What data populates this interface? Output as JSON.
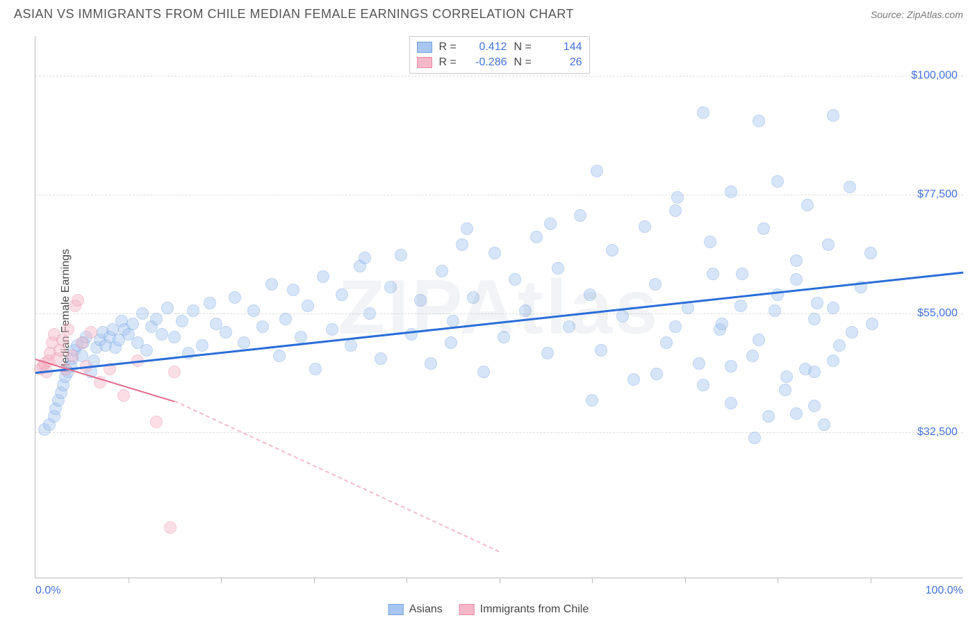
{
  "title": "ASIAN VS IMMIGRANTS FROM CHILE MEDIAN FEMALE EARNINGS CORRELATION CHART",
  "source": "Source: ZipAtlas.com",
  "ylabel": "Median Female Earnings",
  "watermark": "ZIPAtlas",
  "chart": {
    "type": "scatter",
    "background_color": "#ffffff",
    "grid_color": "#dddddd",
    "axis_color": "#bbbbbb",
    "tick_label_color": "#4472e0",
    "axis_text_color": "#444444",
    "xlim": [
      0,
      100
    ],
    "ylim": [
      5000,
      107500
    ],
    "yticks": [
      32500,
      55000,
      77500,
      100000
    ],
    "ytick_labels": [
      "$32,500",
      "$55,000",
      "$77,500",
      "$100,000"
    ],
    "xticks_minor": [
      10,
      20,
      30,
      40,
      50,
      60,
      70,
      80,
      90
    ],
    "xtick_labels": {
      "0": "0.0%",
      "100": "100.0%"
    },
    "marker_radius": 9,
    "marker_opacity": 0.45,
    "series": [
      {
        "name": "Asians",
        "fill_color": "#a8c6f0",
        "stroke_color": "#6fa0e0",
        "line_color": "#2a6dd8",
        "line_width": 3,
        "r": 0.412,
        "n": 144,
        "trend": {
          "x1": 0,
          "y1": 44000,
          "x2": 100,
          "y2": 63000,
          "dash": false
        },
        "points": [
          [
            1,
            33000
          ],
          [
            1.5,
            34000
          ],
          [
            2,
            35500
          ],
          [
            2.2,
            37000
          ],
          [
            2.5,
            38500
          ],
          [
            2.8,
            40000
          ],
          [
            3,
            41500
          ],
          [
            3.2,
            43000
          ],
          [
            3.5,
            44000
          ],
          [
            3.8,
            45000
          ],
          [
            4,
            46500
          ],
          [
            4.2,
            48000
          ],
          [
            4.5,
            49000
          ],
          [
            5,
            47000
          ],
          [
            5.2,
            49500
          ],
          [
            5.5,
            50500
          ],
          [
            6,
            44000
          ],
          [
            6.3,
            46000
          ],
          [
            6.6,
            48500
          ],
          [
            7,
            50000
          ],
          [
            7.3,
            51500
          ],
          [
            7.6,
            49000
          ],
          [
            8,
            50500
          ],
          [
            8.3,
            52000
          ],
          [
            8.6,
            48500
          ],
          [
            9,
            50000
          ],
          [
            9.3,
            53500
          ],
          [
            9.6,
            52000
          ],
          [
            10,
            51000
          ],
          [
            10.5,
            53000
          ],
          [
            11,
            49500
          ],
          [
            11.5,
            55000
          ],
          [
            12,
            48000
          ],
          [
            12.5,
            52500
          ],
          [
            13,
            54000
          ],
          [
            13.6,
            51000
          ],
          [
            14.2,
            56000
          ],
          [
            15,
            50500
          ],
          [
            15.8,
            53500
          ],
          [
            16.5,
            47500
          ],
          [
            17,
            55500
          ],
          [
            18,
            49000
          ],
          [
            18.8,
            57000
          ],
          [
            19.5,
            53000
          ],
          [
            20.5,
            51500
          ],
          [
            21.5,
            58000
          ],
          [
            22.5,
            49500
          ],
          [
            23.5,
            55500
          ],
          [
            24.5,
            52500
          ],
          [
            25.5,
            60500
          ],
          [
            26.3,
            47000
          ],
          [
            27,
            54000
          ],
          [
            27.8,
            59500
          ],
          [
            28.6,
            50500
          ],
          [
            29.4,
            56500
          ],
          [
            30.2,
            44500
          ],
          [
            31,
            62000
          ],
          [
            32,
            52000
          ],
          [
            33,
            58500
          ],
          [
            34,
            49000
          ],
          [
            35,
            64000
          ],
          [
            35.5,
            65500
          ],
          [
            36,
            55000
          ],
          [
            37.2,
            46500
          ],
          [
            38.3,
            60000
          ],
          [
            39.4,
            66000
          ],
          [
            40.5,
            51000
          ],
          [
            41.5,
            57500
          ],
          [
            42.6,
            45500
          ],
          [
            43.8,
            63000
          ],
          [
            44.8,
            49500
          ],
          [
            45,
            53500
          ],
          [
            46,
            68000
          ],
          [
            46.5,
            71000
          ],
          [
            47.2,
            58000
          ],
          [
            48.3,
            44000
          ],
          [
            49.5,
            66500
          ],
          [
            50.5,
            50500
          ],
          [
            51.7,
            61500
          ],
          [
            52.8,
            55500
          ],
          [
            54,
            69500
          ],
          [
            55.2,
            47500
          ],
          [
            55.5,
            72000
          ],
          [
            56.3,
            63500
          ],
          [
            57.5,
            52500
          ],
          [
            58.7,
            73500
          ],
          [
            59.8,
            58500
          ],
          [
            60,
            38500
          ],
          [
            60.5,
            82000
          ],
          [
            61,
            48000
          ],
          [
            62.2,
            67000
          ],
          [
            63.3,
            54500
          ],
          [
            64.5,
            42500
          ],
          [
            65.7,
            71500
          ],
          [
            66.8,
            60500
          ],
          [
            68,
            49500
          ],
          [
            69,
            74500
          ],
          [
            69.2,
            77000
          ],
          [
            70.3,
            56000
          ],
          [
            71.5,
            45500
          ],
          [
            72,
            93000
          ],
          [
            72.7,
            68500
          ],
          [
            73.8,
            52000
          ],
          [
            75,
            78000
          ],
          [
            76.2,
            62500
          ],
          [
            77.3,
            47000
          ],
          [
            78,
            91500
          ],
          [
            78.5,
            71000
          ],
          [
            79.7,
            55500
          ],
          [
            80,
            80000
          ],
          [
            80.8,
            40500
          ],
          [
            82,
            65000
          ],
          [
            83.2,
            75500
          ],
          [
            84,
            44000
          ],
          [
            84.3,
            57000
          ],
          [
            85.5,
            68000
          ],
          [
            86,
            92500
          ],
          [
            86.7,
            49000
          ],
          [
            87.8,
            79000
          ],
          [
            89,
            60000
          ],
          [
            90.2,
            53000
          ],
          [
            82,
            36000
          ],
          [
            85,
            34000
          ],
          [
            75,
            38000
          ],
          [
            77.5,
            31500
          ],
          [
            81,
            43000
          ],
          [
            83,
            44500
          ],
          [
            79,
            35500
          ],
          [
            84,
            37500
          ],
          [
            86,
            46000
          ],
          [
            72,
            41500
          ],
          [
            74,
            53000
          ],
          [
            76,
            56500
          ],
          [
            78,
            50000
          ],
          [
            80,
            58500
          ],
          [
            82,
            61500
          ],
          [
            84,
            54000
          ],
          [
            86,
            56000
          ],
          [
            88,
            51500
          ],
          [
            90,
            66500
          ],
          [
            73,
            62500
          ],
          [
            75,
            45000
          ],
          [
            69,
            52500
          ],
          [
            67,
            43500
          ]
        ]
      },
      {
        "name": "Immigrants from Chile",
        "fill_color": "#f5b8c8",
        "stroke_color": "#e88aa2",
        "line_color": "#e56b8a",
        "line_width": 2,
        "r": -0.286,
        "n": 26,
        "trend": {
          "x1": 0,
          "y1": 46500,
          "x2": 15,
          "y2": 38500,
          "dash": false
        },
        "trend_ext": {
          "x1": 15,
          "y1": 38500,
          "x2": 50,
          "y2": 10000,
          "dash": true
        },
        "points": [
          [
            0.5,
            44500
          ],
          [
            0.8,
            45000
          ],
          [
            1.0,
            45500
          ],
          [
            1.2,
            44000
          ],
          [
            1.4,
            46000
          ],
          [
            1.6,
            47500
          ],
          [
            1.8,
            49500
          ],
          [
            2.0,
            51000
          ],
          [
            2.3,
            46500
          ],
          [
            2.6,
            48000
          ],
          [
            2.9,
            50000
          ],
          [
            3.2,
            44500
          ],
          [
            3.5,
            52000
          ],
          [
            4.0,
            47000
          ],
          [
            4.3,
            56500
          ],
          [
            4.6,
            57500
          ],
          [
            5.0,
            49500
          ],
          [
            5.5,
            45000
          ],
          [
            6.0,
            51500
          ],
          [
            7.0,
            42000
          ],
          [
            8.0,
            44500
          ],
          [
            9.5,
            39500
          ],
          [
            11.0,
            46000
          ],
          [
            13.0,
            34500
          ],
          [
            15.0,
            44000
          ],
          [
            14.5,
            14500
          ]
        ]
      }
    ]
  },
  "legend_bottom": [
    {
      "label": "Asians",
      "fill": "#a8c6f0",
      "stroke": "#6fa0e0"
    },
    {
      "label": "Immigrants from Chile",
      "fill": "#f5b8c8",
      "stroke": "#e88aa2"
    }
  ]
}
